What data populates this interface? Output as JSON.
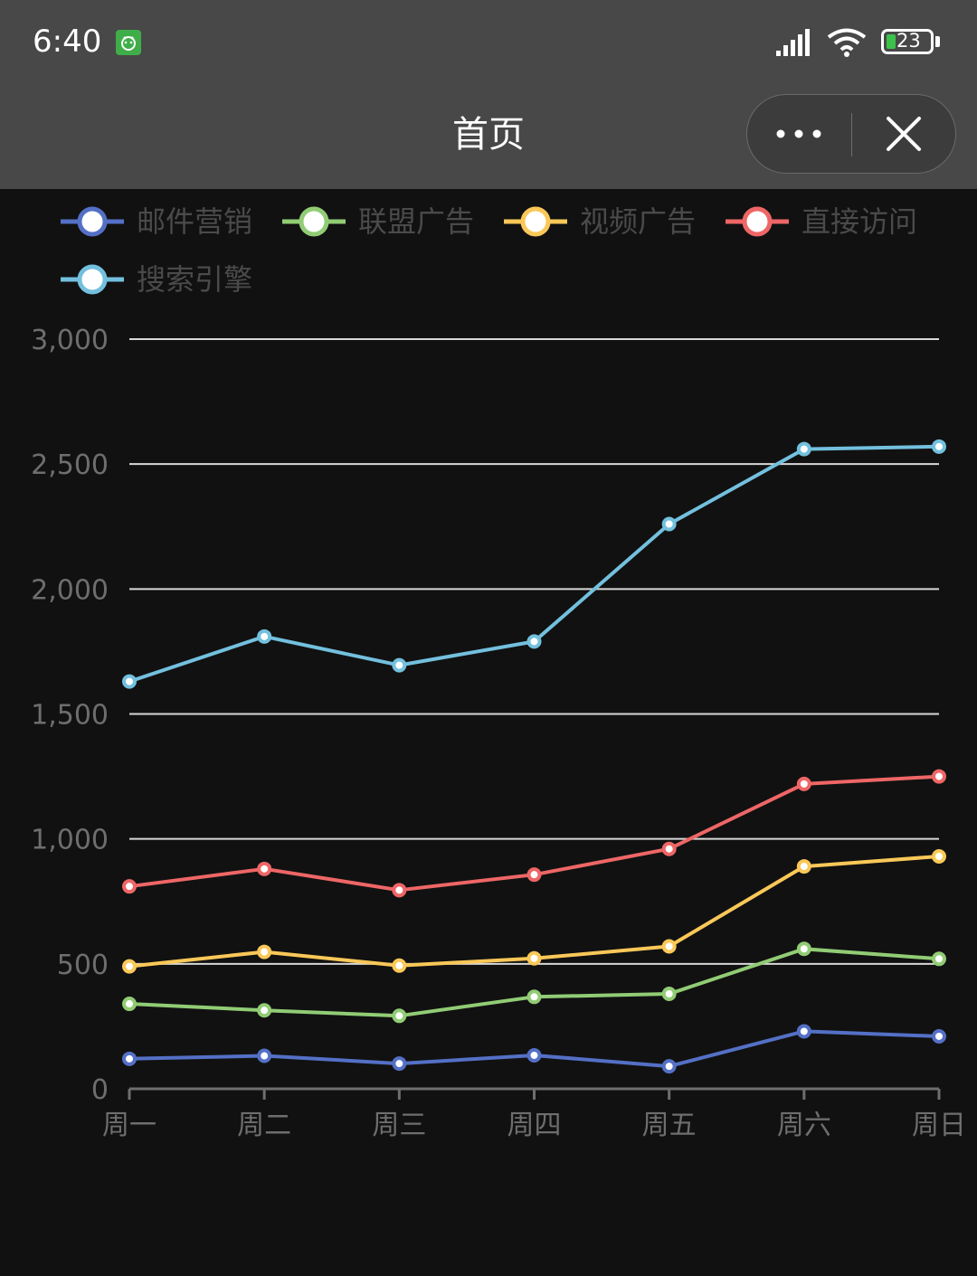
{
  "status_bar": {
    "time": "6:40",
    "battery": "23"
  },
  "nav": {
    "title": "首页",
    "more_icon": "more-dots-icon",
    "close_icon": "close-icon"
  },
  "colors": {
    "background": "#111111",
    "topbar": "#484848",
    "grid": "#d8d8d8",
    "axis": "#6e6e6e"
  },
  "chart_data": {
    "type": "line",
    "categories": [
      "周一",
      "周二",
      "周三",
      "周四",
      "周五",
      "周六",
      "周日"
    ],
    "ylim": [
      0,
      3000
    ],
    "yticks": [
      "0",
      "500",
      "1,000",
      "1,500",
      "2,000",
      "2,500",
      "3,000"
    ],
    "grid": true,
    "stacked": true,
    "legend_position": "top-left",
    "series": [
      {
        "name": "邮件营销",
        "color": "#5470c6",
        "values": [
          120,
          132,
          101,
          134,
          90,
          230,
          210
        ]
      },
      {
        "name": "联盟广告",
        "color": "#91cc75",
        "values": [
          340,
          314,
          292,
          368,
          380,
          560,
          520
        ]
      },
      {
        "name": "视频广告",
        "color": "#fac858",
        "values": [
          490,
          548,
          493,
          522,
          570,
          890,
          930
        ]
      },
      {
        "name": "直接访问",
        "color": "#ee6666",
        "values": [
          810,
          880,
          795,
          857,
          960,
          1220,
          1250
        ]
      },
      {
        "name": "搜索引擎",
        "color": "#73c0de",
        "values": [
          1630,
          1810,
          1695,
          1790,
          2260,
          2560,
          2570
        ]
      }
    ]
  }
}
